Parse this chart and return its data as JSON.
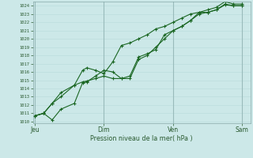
{
  "background_color": "#cce8e8",
  "grid_color_minor": "#bbdddd",
  "grid_color_major": "#99bbbb",
  "line_color": "#1a6622",
  "ylabel": "Pression niveau de la mer( hPa )",
  "ylim": [
    1010,
    1024
  ],
  "yticks": [
    1010,
    1011,
    1012,
    1013,
    1014,
    1015,
    1016,
    1017,
    1018,
    1019,
    1020,
    1021,
    1022,
    1023,
    1024
  ],
  "xtick_labels": [
    "Jeu",
    "Dim",
    "Ven",
    "Sam"
  ],
  "xtick_positions": [
    0.0,
    0.333,
    0.667,
    1.0
  ],
  "series1_x": [
    0.0,
    0.042,
    0.083,
    0.125,
    0.19,
    0.23,
    0.25,
    0.292,
    0.333,
    0.375,
    0.417,
    0.458,
    0.5,
    0.542,
    0.583,
    0.625,
    0.667,
    0.708,
    0.75,
    0.792,
    0.833,
    0.875,
    0.917,
    0.958,
    1.0
  ],
  "series1_y": [
    1010.7,
    1011.0,
    1012.2,
    1013.5,
    1014.4,
    1014.8,
    1014.9,
    1015.2,
    1015.5,
    1015.2,
    1015.2,
    1015.2,
    1017.5,
    1018.0,
    1019.0,
    1020.0,
    1021.0,
    1021.5,
    1022.2,
    1023.0,
    1023.2,
    1023.5,
    1024.1,
    1024.0,
    1024.0
  ],
  "series2_x": [
    0.0,
    0.042,
    0.083,
    0.125,
    0.19,
    0.23,
    0.25,
    0.292,
    0.333,
    0.375,
    0.417,
    0.458,
    0.5,
    0.542,
    0.583,
    0.625,
    0.667,
    0.708,
    0.75,
    0.792,
    0.833,
    0.875,
    0.917,
    0.958,
    1.0
  ],
  "series2_y": [
    1010.7,
    1011.0,
    1010.2,
    1011.5,
    1012.2,
    1014.7,
    1014.8,
    1015.5,
    1016.2,
    1016.0,
    1015.2,
    1015.5,
    1017.8,
    1018.2,
    1018.7,
    1020.5,
    1021.0,
    1021.5,
    1022.2,
    1023.2,
    1023.2,
    1023.5,
    1024.2,
    1024.0,
    1024.0
  ],
  "series3_x": [
    0.0,
    0.042,
    0.083,
    0.125,
    0.19,
    0.23,
    0.25,
    0.292,
    0.333,
    0.375,
    0.417,
    0.458,
    0.5,
    0.542,
    0.583,
    0.625,
    0.667,
    0.708,
    0.75,
    0.792,
    0.833,
    0.875,
    0.917,
    0.958,
    1.0
  ],
  "series3_y": [
    1010.7,
    1011.0,
    1012.2,
    1013.0,
    1014.4,
    1016.2,
    1016.5,
    1016.2,
    1015.8,
    1017.2,
    1019.2,
    1019.5,
    1020.0,
    1020.5,
    1021.2,
    1021.5,
    1022.0,
    1022.5,
    1023.0,
    1023.2,
    1023.5,
    1023.8,
    1024.5,
    1024.2,
    1024.2
  ]
}
